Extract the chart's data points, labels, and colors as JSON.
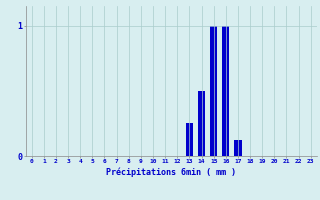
{
  "hours": [
    0,
    1,
    2,
    3,
    4,
    5,
    6,
    7,
    8,
    9,
    10,
    11,
    12,
    13,
    14,
    15,
    16,
    17,
    18,
    19,
    20,
    21,
    22,
    23
  ],
  "values": [
    0,
    0,
    0,
    0,
    0,
    0,
    0,
    0,
    0,
    0,
    0,
    0,
    0,
    0.25,
    0.5,
    1.0,
    1.0,
    0.12,
    0,
    0,
    0,
    0,
    0,
    0
  ],
  "bar_color": "#0000cc",
  "bg_color": "#d8eef0",
  "grid_color": "#aacccc",
  "axis_color": "#888888",
  "text_color": "#0000cc",
  "xlabel": "Précipitations 6min ( mm )",
  "ylim": [
    0,
    1.15
  ],
  "yticks": [
    0,
    1
  ],
  "ytick_labels": [
    "0",
    "1"
  ],
  "bar_width": 0.6
}
